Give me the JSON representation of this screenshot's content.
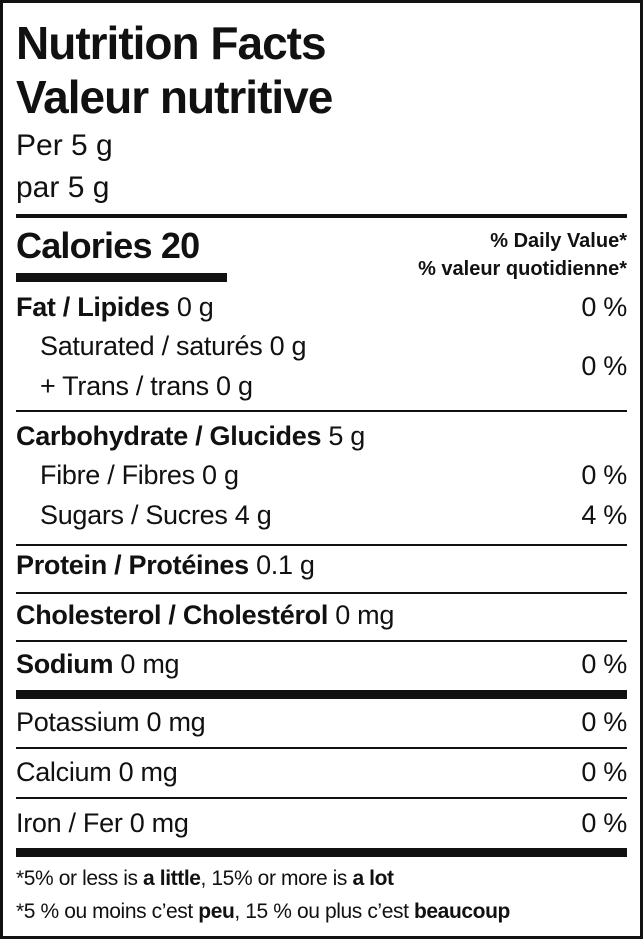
{
  "header": {
    "title_en": "Nutrition Facts",
    "title_fr": "Valeur nutritive",
    "serving_en": "Per 5 g",
    "serving_fr": "par 5 g"
  },
  "calories": {
    "label": "Calories",
    "value": "20"
  },
  "dv_header": {
    "en": "% Daily Value*",
    "fr": "% valeur quotidienne*"
  },
  "nutrients": {
    "fat": {
      "label": "Fat / Lipides",
      "amount": "0 g",
      "dv": "0 %"
    },
    "saturated": {
      "label": "Saturated / saturés 0 g"
    },
    "trans": {
      "label": "+ Trans / trans 0 g",
      "dv": "0 %"
    },
    "carb": {
      "label": "Carbohydrate / Glucides",
      "amount": "5 g"
    },
    "fibre": {
      "label": "Fibre / Fibres 0 g",
      "dv": "0 %"
    },
    "sugars": {
      "label": "Sugars / Sucres 4 g",
      "dv": "4 %"
    },
    "protein": {
      "label": "Protein / Protéines",
      "amount": "0.1 g"
    },
    "cholesterol": {
      "label": "Cholesterol / Cholestérol",
      "amount": "0 mg"
    },
    "sodium": {
      "label": "Sodium",
      "amount": "0 mg",
      "dv": "0 %"
    },
    "potassium": {
      "label": "Potassium 0 mg",
      "dv": "0 %"
    },
    "calcium": {
      "label": "Calcium 0 mg",
      "dv": "0 %"
    },
    "iron": {
      "label": "Iron / Fer 0 mg",
      "dv": "0 %"
    }
  },
  "footnote": {
    "en": {
      "a": "*5% or less is ",
      "b": "a little",
      "c": ", 15% or more is ",
      "d": "a lot"
    },
    "fr": {
      "a": "*5 % ou moins c’est ",
      "b": "peu",
      "c": ", 15 % ou plus c’est ",
      "d": "beaucoup"
    }
  }
}
